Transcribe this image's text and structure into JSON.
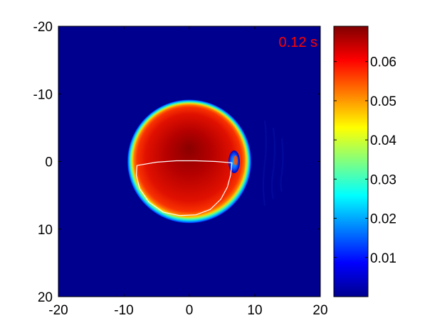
{
  "chart_data": {
    "type": "heatmap",
    "title": "",
    "xlabel": "",
    "ylabel": "",
    "annotation": "0.12 s",
    "annotation_color": "#ff0000",
    "xlim": [
      -20,
      20
    ],
    "ylim": [
      -20,
      20
    ],
    "y_reversed": true,
    "x_ticks": [
      "-20",
      "-10",
      "0",
      "10",
      "20"
    ],
    "y_ticks": [
      "-20",
      "-10",
      "0",
      "10",
      "20"
    ],
    "x_tick_values": [
      -20,
      -10,
      0,
      10,
      20
    ],
    "y_tick_values": [
      -20,
      -10,
      0,
      10,
      20
    ],
    "colormap": "jet",
    "color_range": [
      0,
      0.069
    ],
    "colorbar_ticks": [
      "0.01",
      "0.02",
      "0.03",
      "0.04",
      "0.05",
      "0.06"
    ],
    "colorbar_tick_values": [
      0.01,
      0.02,
      0.03,
      0.04,
      0.05,
      0.06
    ],
    "field": {
      "shape": "disk",
      "center": [
        0,
        0
      ],
      "radius": 9.5,
      "edge_width": 1.3,
      "peak_value": 0.069,
      "peak_center": [
        0,
        -2
      ],
      "rim_value": 0.058,
      "background_value": 0.0
    },
    "contour": {
      "color": "#ffffff",
      "points": [
        [
          -8,
          0.6
        ],
        [
          -5,
          0.1
        ],
        [
          -2,
          -0.1
        ],
        [
          1,
          -0.1
        ],
        [
          4,
          0.0
        ],
        [
          6.5,
          0.2
        ],
        [
          6.3,
          2.0
        ],
        [
          5.8,
          3.8
        ],
        [
          4.8,
          5.6
        ],
        [
          3.2,
          7.1
        ],
        [
          1,
          7.9
        ],
        [
          -1.5,
          8.0
        ],
        [
          -4,
          7.5
        ],
        [
          -6.2,
          6.0
        ],
        [
          -7.6,
          4.0
        ],
        [
          -8.1,
          2.0
        ],
        [
          -8,
          0.6
        ]
      ]
    },
    "feature": {
      "center": [
        7,
        0
      ],
      "description_color_inner": "#00c8ff",
      "description_color_outer": "#0000c0"
    }
  }
}
